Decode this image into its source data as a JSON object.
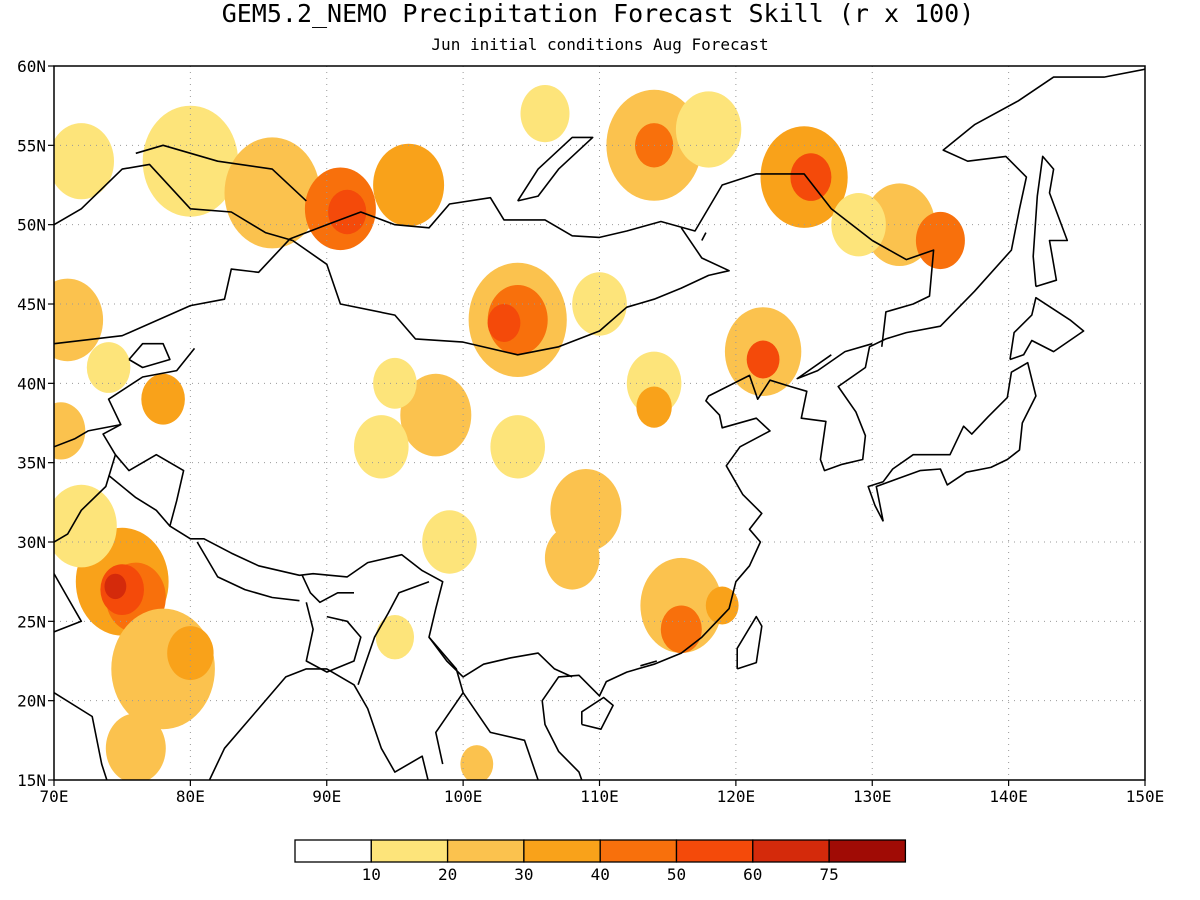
{
  "title": "GEM5.2_NEMO Precipitation Forecast Skill (r x 100)",
  "subtitle": "Jun initial conditions  Aug Forecast",
  "map": {
    "lon_range": [
      70,
      150
    ],
    "lat_range": [
      15,
      60
    ],
    "x_ticks": [
      {
        "value": 70,
        "label": "70E"
      },
      {
        "value": 80,
        "label": "80E"
      },
      {
        "value": 90,
        "label": "90E"
      },
      {
        "value": 100,
        "label": "100E"
      },
      {
        "value": 110,
        "label": "110E"
      },
      {
        "value": 120,
        "label": "120E"
      },
      {
        "value": 130,
        "label": "130E"
      },
      {
        "value": 140,
        "label": "140E"
      },
      {
        "value": 150,
        "label": "150E"
      }
    ],
    "y_ticks": [
      {
        "value": 15,
        "label": "15N"
      },
      {
        "value": 20,
        "label": "20N"
      },
      {
        "value": 25,
        "label": "25N"
      },
      {
        "value": 30,
        "label": "30N"
      },
      {
        "value": 35,
        "label": "35N"
      },
      {
        "value": 40,
        "label": "40N"
      },
      {
        "value": 45,
        "label": "45N"
      },
      {
        "value": 50,
        "label": "50N"
      },
      {
        "value": 55,
        "label": "55N"
      },
      {
        "value": 60,
        "label": "60N"
      }
    ],
    "grid": "dotted"
  },
  "colorbar": {
    "levels": [
      "10",
      "20",
      "30",
      "40",
      "50",
      "60",
      "75"
    ],
    "colors": [
      "#ffffff",
      "#fde47a",
      "#fbc24e",
      "#f9a21a",
      "#f8700c",
      "#f44a0a",
      "#d42a0b",
      "#a00b05"
    ]
  }
}
